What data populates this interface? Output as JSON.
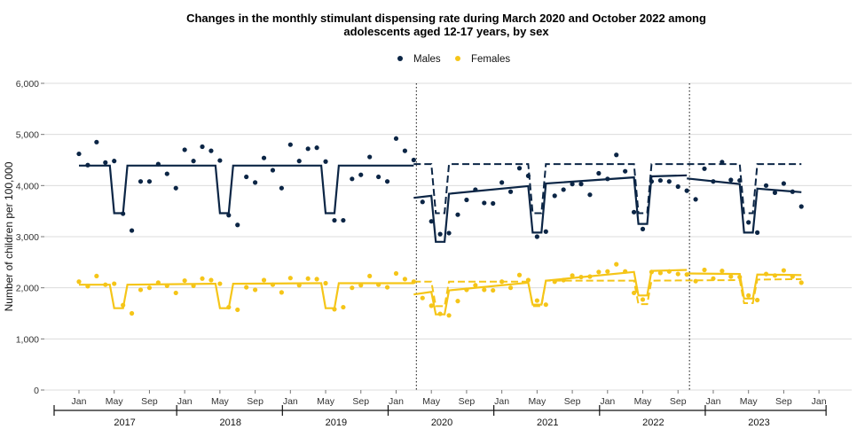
{
  "chart_data": {
    "type": "scatter",
    "title_line1": "Changes in the monthly stimulant dispensing rate during March 2020 and October 2022 among",
    "title_line2": "adolescents aged 12-17 years, by sex",
    "ylabel": "Number of children per 100,000",
    "ylim": [
      0,
      6000
    ],
    "y_ticks": [
      {
        "value": 0,
        "label": "0"
      },
      {
        "value": 1000,
        "label": "1,000"
      },
      {
        "value": 2000,
        "label": "2,000"
      },
      {
        "value": 3000,
        "label": "3,000"
      },
      {
        "value": 4000,
        "label": "4,000"
      },
      {
        "value": 5000,
        "label": "5,000"
      },
      {
        "value": 6000,
        "label": "6,000"
      }
    ],
    "x_note": "x is month index: 0 = Jan 2017",
    "x_ticks": [
      {
        "x": 0,
        "label": "Jan"
      },
      {
        "x": 4,
        "label": "May"
      },
      {
        "x": 8,
        "label": "Sep"
      },
      {
        "x": 12,
        "label": "Jan"
      },
      {
        "x": 16,
        "label": "May"
      },
      {
        "x": 20,
        "label": "Sep"
      },
      {
        "x": 24,
        "label": "Jan"
      },
      {
        "x": 28,
        "label": "May"
      },
      {
        "x": 32,
        "label": "Sep"
      },
      {
        "x": 36,
        "label": "Jan"
      },
      {
        "x": 40,
        "label": "May"
      },
      {
        "x": 44,
        "label": "Sep"
      },
      {
        "x": 48,
        "label": "Jan"
      },
      {
        "x": 52,
        "label": "May"
      },
      {
        "x": 56,
        "label": "Sep"
      },
      {
        "x": 60,
        "label": "Jan"
      },
      {
        "x": 64,
        "label": "May"
      },
      {
        "x": 68,
        "label": "Sep"
      },
      {
        "x": 72,
        "label": "Jan"
      },
      {
        "x": 76,
        "label": "May"
      },
      {
        "x": 80,
        "label": "Sep"
      },
      {
        "x": 84,
        "label": "Jan"
      }
    ],
    "years": [
      {
        "label": "2017",
        "center": 6
      },
      {
        "label": "2018",
        "center": 18
      },
      {
        "label": "2019",
        "center": 30
      },
      {
        "label": "2020",
        "center": 42
      },
      {
        "label": "2021",
        "center": 54
      },
      {
        "label": "2022",
        "center": 66
      },
      {
        "label": "2023",
        "center": 78
      }
    ],
    "year_separators": [
      0,
      12,
      24,
      36,
      48,
      60,
      72,
      84
    ],
    "period_markers": [
      38,
      69
    ],
    "legend": [
      {
        "label": "Males",
        "color": "#0b2545"
      },
      {
        "label": "Females",
        "color": "#f5c518"
      }
    ],
    "series": [
      {
        "name": "Males",
        "color": "#0b2545",
        "points": [
          [
            0,
            4620
          ],
          [
            1,
            4400
          ],
          [
            2,
            4850
          ],
          [
            3,
            4450
          ],
          [
            4,
            4480
          ],
          [
            5,
            3450
          ],
          [
            6,
            3120
          ],
          [
            7,
            4080
          ],
          [
            8,
            4080
          ],
          [
            9,
            4420
          ],
          [
            10,
            4230
          ],
          [
            11,
            3950
          ],
          [
            12,
            4700
          ],
          [
            13,
            4480
          ],
          [
            14,
            4760
          ],
          [
            15,
            4680
          ],
          [
            16,
            4490
          ],
          [
            17,
            3420
          ],
          [
            18,
            3230
          ],
          [
            19,
            4170
          ],
          [
            20,
            4060
          ],
          [
            21,
            4540
          ],
          [
            22,
            4300
          ],
          [
            23,
            3950
          ],
          [
            24,
            4800
          ],
          [
            25,
            4480
          ],
          [
            26,
            4720
          ],
          [
            27,
            4740
          ],
          [
            28,
            4470
          ],
          [
            29,
            3320
          ],
          [
            30,
            3320
          ],
          [
            31,
            4130
          ],
          [
            32,
            4210
          ],
          [
            33,
            4560
          ],
          [
            34,
            4170
          ],
          [
            35,
            4080
          ],
          [
            36,
            4920
          ],
          [
            37,
            4680
          ],
          [
            38,
            4500
          ],
          [
            39,
            3680
          ],
          [
            40,
            3300
          ],
          [
            41,
            3050
          ],
          [
            42,
            3070
          ],
          [
            43,
            3430
          ],
          [
            44,
            3720
          ],
          [
            45,
            3920
          ],
          [
            46,
            3660
          ],
          [
            47,
            3650
          ],
          [
            48,
            4060
          ],
          [
            49,
            3880
          ],
          [
            50,
            4340
          ],
          [
            51,
            4190
          ],
          [
            52,
            3000
          ],
          [
            53,
            3100
          ],
          [
            54,
            3800
          ],
          [
            55,
            3920
          ],
          [
            56,
            4030
          ],
          [
            57,
            4030
          ],
          [
            58,
            3820
          ],
          [
            59,
            4240
          ],
          [
            60,
            4130
          ],
          [
            61,
            4600
          ],
          [
            62,
            4280
          ],
          [
            63,
            3480
          ],
          [
            64,
            3150
          ],
          [
            65,
            4080
          ],
          [
            66,
            4100
          ],
          [
            67,
            4080
          ],
          [
            68,
            3980
          ],
          [
            69,
            3900
          ],
          [
            70,
            3730
          ],
          [
            71,
            4330
          ],
          [
            72,
            4080
          ],
          [
            73,
            4460
          ],
          [
            74,
            4110
          ],
          [
            75,
            4100
          ],
          [
            76,
            3280
          ],
          [
            77,
            3080
          ],
          [
            78,
            4000
          ],
          [
            79,
            3860
          ],
          [
            80,
            4040
          ],
          [
            81,
            3880
          ],
          [
            82,
            3590
          ]
        ],
        "fitted": [
          [
            0,
            4390
          ],
          [
            3,
            4390
          ],
          [
            3.5,
            4390
          ],
          [
            4,
            3460
          ],
          [
            5,
            3460
          ],
          [
            5.5,
            4390
          ],
          [
            15,
            4390
          ],
          [
            15.5,
            4390
          ],
          [
            16,
            3460
          ],
          [
            17,
            3460
          ],
          [
            17.5,
            4390
          ],
          [
            27,
            4390
          ],
          [
            27.5,
            4390
          ],
          [
            28,
            3460
          ],
          [
            29,
            3460
          ],
          [
            29.5,
            4390
          ],
          [
            38,
            4390
          ]
        ],
        "fitted_segments": [
          [
            [
              38,
              3760
            ],
            [
              40,
              3800
            ],
            [
              40.5,
              2900
            ],
            [
              41.5,
              2900
            ],
            [
              42,
              3840
            ],
            [
              51,
              3990
            ],
            [
              51.5,
              3080
            ],
            [
              52.5,
              3080
            ],
            [
              53,
              4040
            ],
            [
              63,
              4160
            ],
            [
              63.5,
              3250
            ],
            [
              64.5,
              3250
            ],
            [
              65,
              4180
            ],
            [
              69,
              4200
            ]
          ],
          [
            [
              69,
              4140
            ],
            [
              75,
              4030
            ],
            [
              75.5,
              3080
            ],
            [
              76.5,
              3080
            ],
            [
              77,
              3940
            ],
            [
              82,
              3870
            ]
          ]
        ],
        "counterfactual": [
          [
            38,
            4420
          ],
          [
            40,
            4420
          ],
          [
            40.5,
            3460
          ],
          [
            41.5,
            3460
          ],
          [
            42,
            4420
          ],
          [
            51,
            4420
          ],
          [
            51.5,
            3460
          ],
          [
            52.5,
            3460
          ],
          [
            53,
            4420
          ],
          [
            63,
            4420
          ],
          [
            63.5,
            3460
          ],
          [
            64.5,
            3460
          ],
          [
            65,
            4420
          ],
          [
            75,
            4420
          ],
          [
            75.5,
            3460
          ],
          [
            76.5,
            3460
          ],
          [
            77,
            4420
          ],
          [
            82,
            4420
          ]
        ]
      },
      {
        "name": "Females",
        "color": "#f5c518",
        "points": [
          [
            0,
            2120
          ],
          [
            1,
            2030
          ],
          [
            2,
            2230
          ],
          [
            3,
            2060
          ],
          [
            4,
            2080
          ],
          [
            5,
            1660
          ],
          [
            6,
            1500
          ],
          [
            7,
            1960
          ],
          [
            8,
            2000
          ],
          [
            9,
            2100
          ],
          [
            10,
            2040
          ],
          [
            11,
            1900
          ],
          [
            12,
            2140
          ],
          [
            13,
            2040
          ],
          [
            14,
            2180
          ],
          [
            15,
            2150
          ],
          [
            16,
            2080
          ],
          [
            17,
            1620
          ],
          [
            18,
            1570
          ],
          [
            19,
            2010
          ],
          [
            20,
            1960
          ],
          [
            21,
            2150
          ],
          [
            22,
            2060
          ],
          [
            23,
            1910
          ],
          [
            24,
            2190
          ],
          [
            25,
            2050
          ],
          [
            26,
            2180
          ],
          [
            27,
            2170
          ],
          [
            28,
            2090
          ],
          [
            29,
            1580
          ],
          [
            30,
            1620
          ],
          [
            31,
            2000
          ],
          [
            32,
            2050
          ],
          [
            33,
            2230
          ],
          [
            34,
            2060
          ],
          [
            35,
            2010
          ],
          [
            36,
            2280
          ],
          [
            37,
            2170
          ],
          [
            38,
            2120
          ],
          [
            39,
            1800
          ],
          [
            40,
            1650
          ],
          [
            41,
            1490
          ],
          [
            42,
            1460
          ],
          [
            43,
            1740
          ],
          [
            44,
            1960
          ],
          [
            45,
            2050
          ],
          [
            46,
            1960
          ],
          [
            47,
            1950
          ],
          [
            48,
            2120
          ],
          [
            49,
            2000
          ],
          [
            50,
            2250
          ],
          [
            51,
            2150
          ],
          [
            52,
            1750
          ],
          [
            53,
            1670
          ],
          [
            54,
            2120
          ],
          [
            55,
            2150
          ],
          [
            56,
            2240
          ],
          [
            57,
            2210
          ],
          [
            58,
            2220
          ],
          [
            59,
            2310
          ],
          [
            60,
            2320
          ],
          [
            61,
            2460
          ],
          [
            62,
            2320
          ],
          [
            63,
            1900
          ],
          [
            64,
            1770
          ],
          [
            65,
            2310
          ],
          [
            66,
            2290
          ],
          [
            67,
            2320
          ],
          [
            68,
            2270
          ],
          [
            69,
            2260
          ],
          [
            70,
            2130
          ],
          [
            71,
            2350
          ],
          [
            72,
            2180
          ],
          [
            73,
            2330
          ],
          [
            74,
            2220
          ],
          [
            75,
            2210
          ],
          [
            76,
            1850
          ],
          [
            77,
            1760
          ],
          [
            78,
            2270
          ],
          [
            79,
            2240
          ],
          [
            80,
            2340
          ],
          [
            81,
            2220
          ],
          [
            82,
            2100
          ]
        ],
        "fitted": [
          [
            0,
            2060
          ],
          [
            3,
            2060
          ],
          [
            3.5,
            2060
          ],
          [
            4,
            1600
          ],
          [
            5,
            1600
          ],
          [
            5.5,
            2060
          ],
          [
            15,
            2080
          ],
          [
            15.5,
            2080
          ],
          [
            16,
            1600
          ],
          [
            17,
            1600
          ],
          [
            17.5,
            2080
          ],
          [
            27,
            2090
          ],
          [
            27.5,
            2090
          ],
          [
            28,
            1600
          ],
          [
            29,
            1600
          ],
          [
            29.5,
            2090
          ],
          [
            38,
            2090
          ]
        ],
        "fitted_segments": [
          [
            [
              38,
              1870
            ],
            [
              40,
              1920
            ],
            [
              40.5,
              1480
            ],
            [
              41.5,
              1480
            ],
            [
              42,
              1950
            ],
            [
              51,
              2100
            ],
            [
              51.5,
              1670
            ],
            [
              52.5,
              1670
            ],
            [
              53,
              2140
            ],
            [
              63,
              2310
            ],
            [
              63.5,
              1850
            ],
            [
              64.5,
              1850
            ],
            [
              65,
              2330
            ],
            [
              69,
              2350
            ]
          ],
          [
            [
              69,
              2280
            ],
            [
              75,
              2270
            ],
            [
              75.5,
              1790
            ],
            [
              76.5,
              1790
            ],
            [
              77,
              2260
            ],
            [
              82,
              2250
            ]
          ]
        ],
        "counterfactual": [
          [
            38,
            2120
          ],
          [
            40,
            2120
          ],
          [
            40.5,
            1640
          ],
          [
            41.5,
            1640
          ],
          [
            42,
            2120
          ],
          [
            51,
            2120
          ],
          [
            51.5,
            1640
          ],
          [
            52.5,
            1640
          ],
          [
            53,
            2140
          ],
          [
            63,
            2140
          ],
          [
            63.5,
            1680
          ],
          [
            64.5,
            1680
          ],
          [
            65,
            2140
          ],
          [
            75,
            2150
          ],
          [
            75.5,
            1700
          ],
          [
            76.5,
            1700
          ],
          [
            77,
            2160
          ],
          [
            82,
            2170
          ]
        ]
      }
    ]
  }
}
